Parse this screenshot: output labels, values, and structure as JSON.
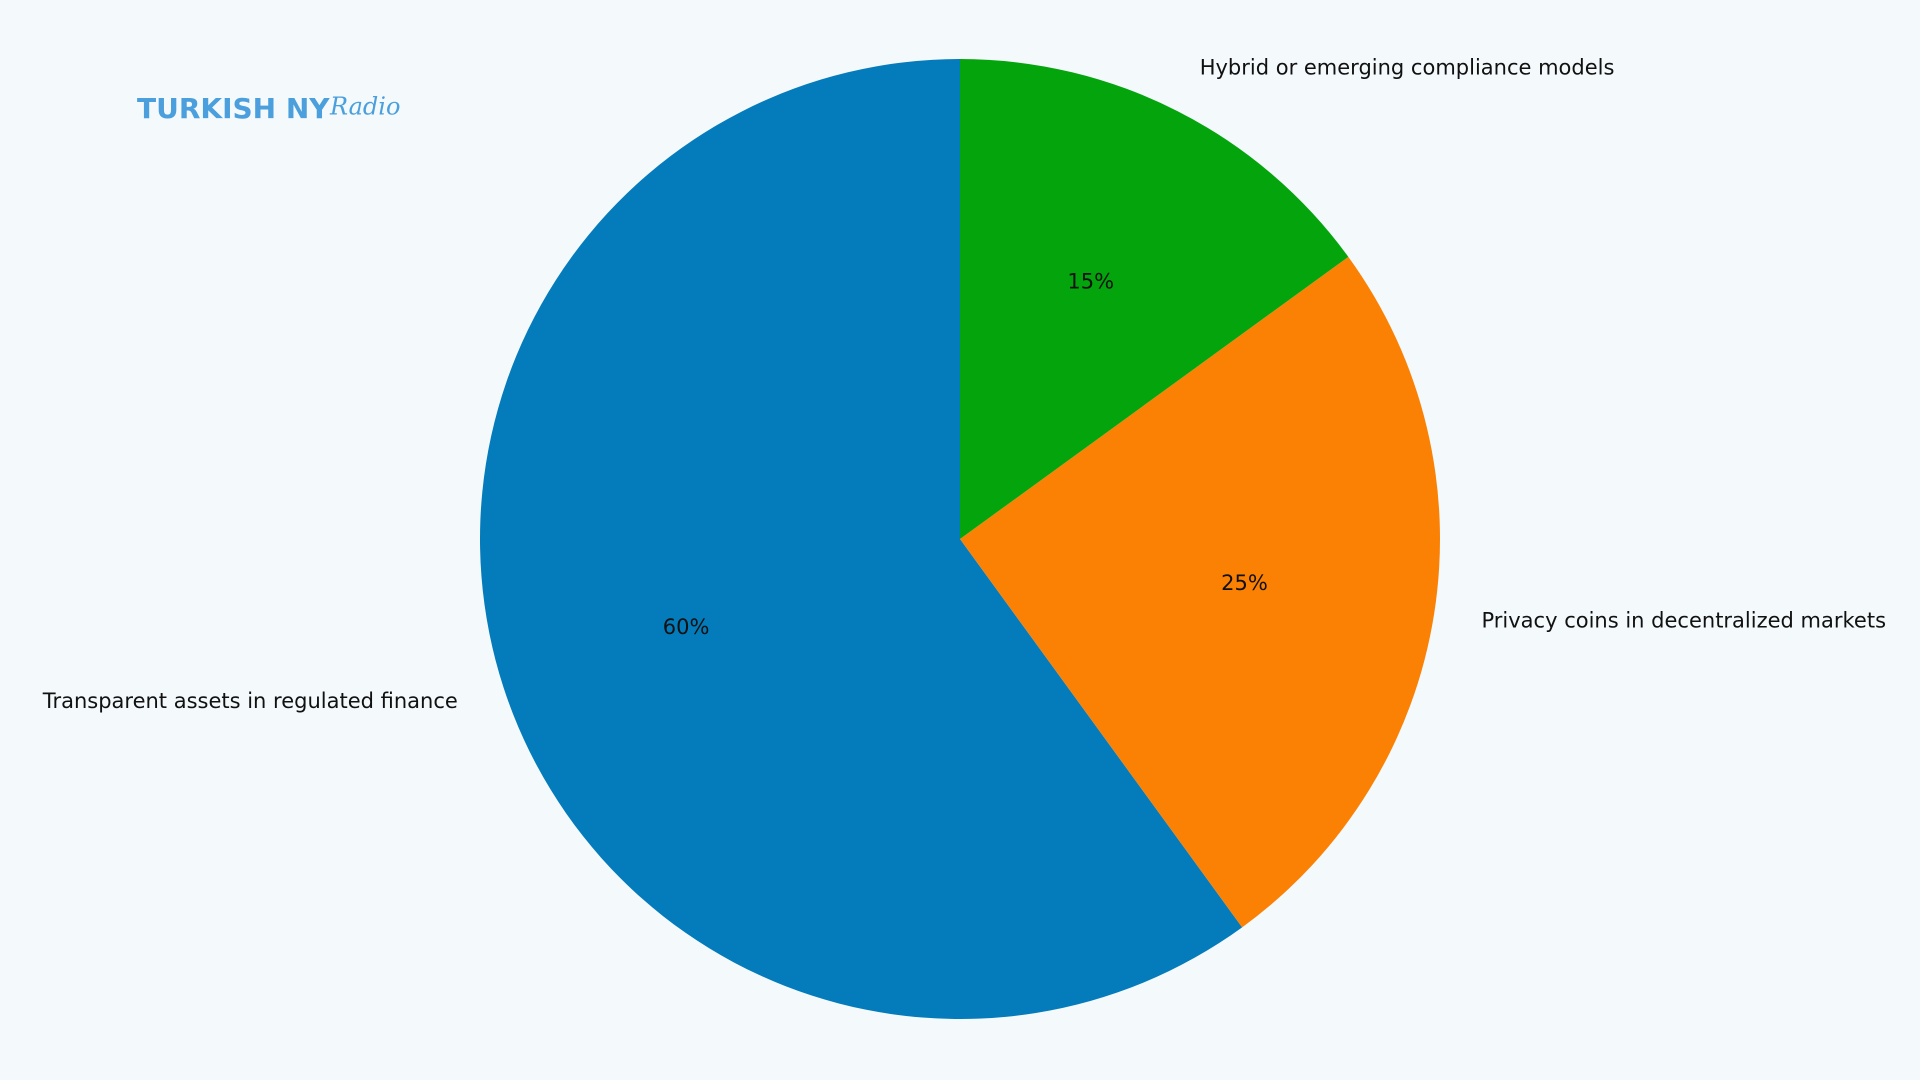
{
  "logo": {
    "brand": "TURKISH NY",
    "script": "Radio"
  },
  "chart_data": {
    "type": "pie",
    "categories": [
      "Transparent assets in regulated finance",
      "Privacy coins in decentralized markets",
      "Hybrid or emerging compliance models"
    ],
    "values": [
      60,
      25,
      15
    ],
    "value_labels": [
      "60%",
      "25%",
      "15%"
    ],
    "colors": [
      "#047bbb",
      "#fb8104",
      "#04a50c"
    ],
    "start_angle": 90
  }
}
